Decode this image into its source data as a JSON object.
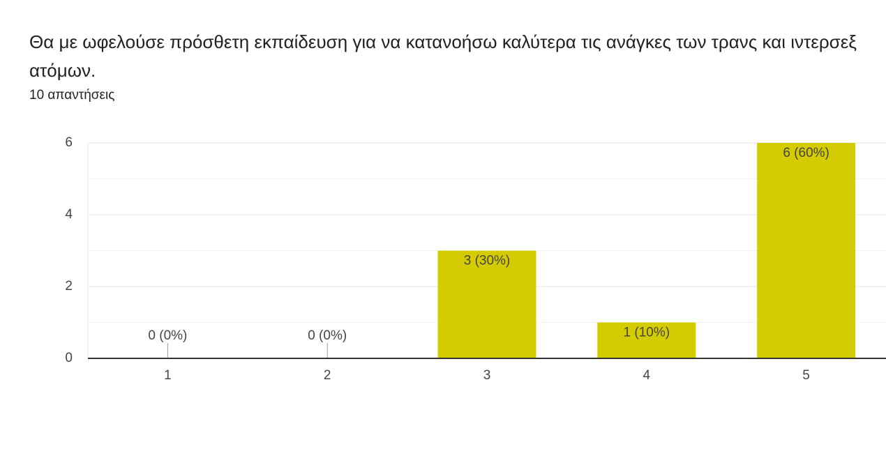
{
  "chart_data": {
    "type": "bar",
    "title": "Θα με ωφελούσε πρόσθετη εκπαίδευση για να κατανοήσω καλύτερα τις ανάγκες των τρανς και ιντερσεξ ατόμων.",
    "subtitle": "10 απαντήσεις",
    "categories": [
      "1",
      "2",
      "3",
      "4",
      "5"
    ],
    "values": [
      0,
      0,
      3,
      1,
      6
    ],
    "value_labels": [
      "0 (0%)",
      "0 (0%)",
      "3 (30%)",
      "1 (10%)",
      "6 (60%)"
    ],
    "color": "#d4cc00",
    "ylim": [
      0,
      6
    ],
    "yticks": [
      0,
      2,
      4,
      6
    ],
    "minor_yticks": [
      1,
      3,
      5
    ],
    "grid": true
  }
}
